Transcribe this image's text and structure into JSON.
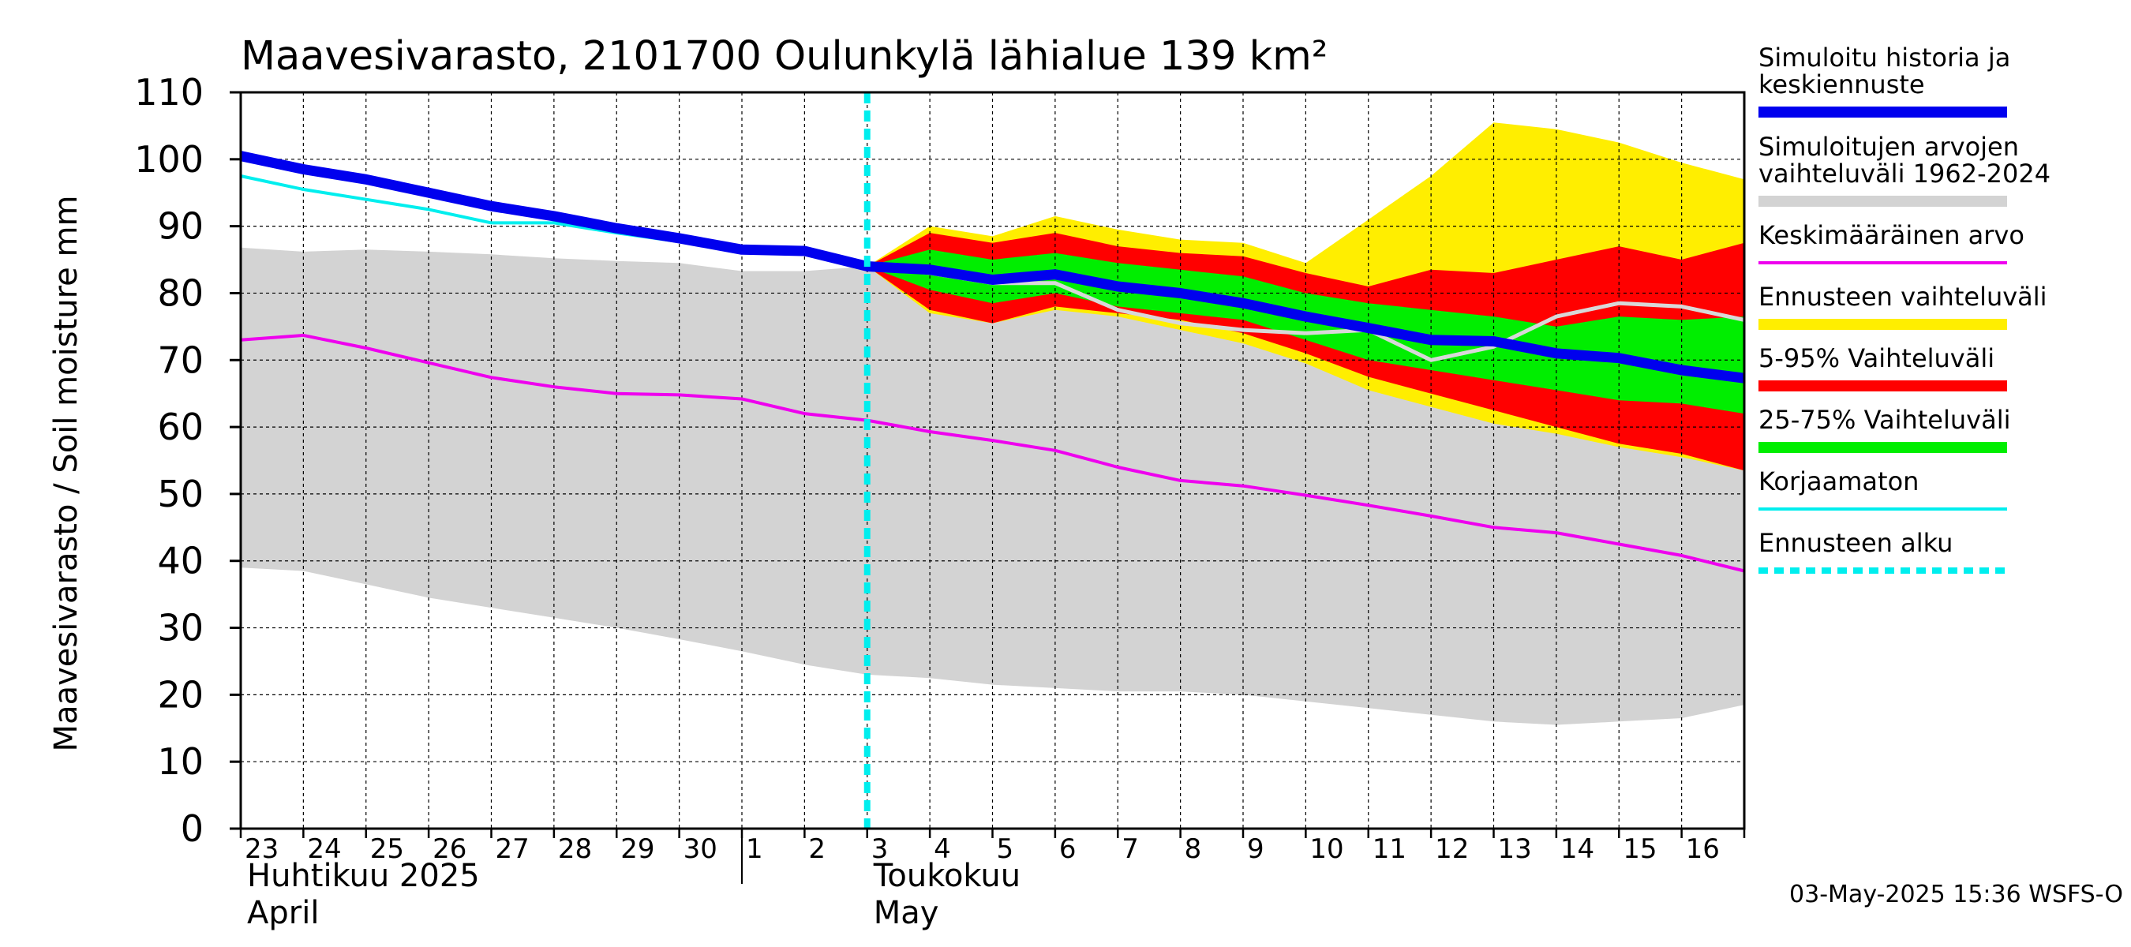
{
  "chart_data": {
    "type": "area",
    "title": "Maavesivarasto, 2101700 Oulunkylä lähialue 139 km²",
    "ylabel": "Maavesivarasto / Soil moisture   mm",
    "ylim": [
      0,
      110
    ],
    "yticks": [
      0,
      10,
      20,
      30,
      40,
      50,
      60,
      70,
      80,
      90,
      100,
      110
    ],
    "x_range": [
      "2025-04-23",
      "2025-05-17"
    ],
    "day_labels": [
      "23",
      "24",
      "25",
      "26",
      "27",
      "28",
      "29",
      "30",
      "1",
      "2",
      "3",
      "4",
      "5",
      "6",
      "7",
      "8",
      "9",
      "10",
      "11",
      "12",
      "13",
      "14",
      "15",
      "16"
    ],
    "months": [
      {
        "name": "Huhtikuu  2025",
        "name_en": "April",
        "start_date": "2025-04-23"
      },
      {
        "name": "Toukokuu",
        "name_en": "May",
        "start_date": "2025-05-03"
      }
    ],
    "month_separator_date": "2025-05-01",
    "forecast_start": "2025-05-03",
    "grid": true,
    "footer": "03-May-2025 15:36 WSFS-O",
    "legend_position": "right",
    "legend": [
      {
        "label": "Simuloitu historia ja keskiennuste",
        "color": "#0000ee",
        "style": "thick"
      },
      {
        "label": "Simuloitujen arvojen vaihteluväli 1962-2024",
        "color": "#d3d3d3",
        "style": "thick"
      },
      {
        "label": "Keskimääräinen arvo",
        "color": "#ee00ee",
        "style": "thin"
      },
      {
        "label": "Ennusteen vaihteluväli",
        "color": "#ffee00",
        "style": "thick"
      },
      {
        "label": "5-95% Vaihteluväli",
        "color": "#ff0000",
        "style": "thick"
      },
      {
        "label": "25-75% Vaihteluväli",
        "color": "#00ee00",
        "style": "thick"
      },
      {
        "label": "Korjaamaton",
        "color": "#00eeee",
        "style": "thin"
      },
      {
        "label": "Ennusteen alku",
        "color": "#00eeee",
        "style": "dashed"
      }
    ],
    "series": {
      "historical_range": {
        "x": [
          "2025-04-23",
          "2025-04-24",
          "2025-04-25",
          "2025-04-26",
          "2025-04-27",
          "2025-04-28",
          "2025-04-29",
          "2025-04-30",
          "2025-05-01",
          "2025-05-02",
          "2025-05-03",
          "2025-05-04",
          "2025-05-05",
          "2025-05-06",
          "2025-05-07",
          "2025-05-08",
          "2025-05-09",
          "2025-05-10",
          "2025-05-11",
          "2025-05-12",
          "2025-05-13",
          "2025-05-14",
          "2025-05-15",
          "2025-05-16",
          "2025-05-17"
        ],
        "upper": [
          86.8,
          86.2,
          86.5,
          86.2,
          85.8,
          85.2,
          84.8,
          84.5,
          83.3,
          83.3,
          84.0,
          82.0,
          81.0,
          81.5,
          79.0,
          76.5,
          74.5,
          73.5,
          72.5,
          72.0,
          71.0,
          70.5,
          70.5,
          70.5,
          71.0
        ],
        "lower": [
          39.0,
          38.5,
          36.5,
          34.5,
          33.0,
          31.5,
          30.0,
          28.3,
          26.5,
          24.5,
          23.0,
          22.5,
          21.5,
          21.0,
          20.5,
          20.5,
          20.0,
          19.0,
          18.0,
          17.0,
          16.0,
          15.5,
          16.0,
          16.5,
          18.5
        ]
      },
      "forecast_range": {
        "x": [
          "2025-05-03",
          "2025-05-04",
          "2025-05-05",
          "2025-05-06",
          "2025-05-07",
          "2025-05-08",
          "2025-05-09",
          "2025-05-10",
          "2025-05-11",
          "2025-05-12",
          "2025-05-13",
          "2025-05-14",
          "2025-05-15",
          "2025-05-16",
          "2025-05-17"
        ],
        "upper": [
          84.0,
          90.0,
          88.5,
          91.5,
          89.5,
          88.0,
          87.5,
          84.5,
          91.0,
          97.5,
          105.5,
          104.5,
          102.5,
          99.5,
          97.0
        ],
        "lower": [
          84.0,
          77.0,
          75.5,
          77.5,
          76.5,
          74.5,
          72.5,
          69.5,
          65.5,
          63.0,
          60.5,
          59.0,
          57.0,
          55.5,
          53.5
        ]
      },
      "p5_95": {
        "x": [
          "2025-05-03",
          "2025-05-04",
          "2025-05-05",
          "2025-05-06",
          "2025-05-07",
          "2025-05-08",
          "2025-05-09",
          "2025-05-10",
          "2025-05-11",
          "2025-05-12",
          "2025-05-13",
          "2025-05-14",
          "2025-05-15",
          "2025-05-16",
          "2025-05-17"
        ],
        "upper": [
          84.0,
          89.0,
          87.5,
          89.0,
          87.0,
          86.0,
          85.5,
          83.0,
          81.0,
          83.5,
          83.0,
          85.0,
          87.0,
          85.0,
          87.5
        ],
        "lower": [
          84.0,
          77.5,
          75.5,
          78.0,
          77.0,
          76.0,
          74.0,
          71.0,
          67.5,
          65.0,
          62.5,
          60.0,
          57.5,
          56.0,
          53.5
        ]
      },
      "p25_75": {
        "x": [
          "2025-05-03",
          "2025-05-04",
          "2025-05-05",
          "2025-05-06",
          "2025-05-07",
          "2025-05-08",
          "2025-05-09",
          "2025-05-10",
          "2025-05-11",
          "2025-05-12",
          "2025-05-13",
          "2025-05-14",
          "2025-05-15",
          "2025-05-16",
          "2025-05-17"
        ],
        "upper": [
          84.0,
          86.5,
          85.0,
          86.0,
          84.5,
          83.5,
          82.5,
          80.0,
          78.5,
          77.5,
          76.5,
          75.0,
          76.5,
          76.0,
          76.5
        ],
        "lower": [
          84.0,
          80.5,
          78.5,
          80.0,
          78.0,
          77.0,
          76.0,
          73.0,
          70.0,
          68.5,
          67.0,
          65.5,
          64.0,
          63.5,
          62.0
        ]
      },
      "simulated_mean": {
        "x": [
          "2025-04-23",
          "2025-04-24",
          "2025-04-25",
          "2025-04-26",
          "2025-04-27",
          "2025-04-28",
          "2025-04-29",
          "2025-04-30",
          "2025-05-01",
          "2025-05-02",
          "2025-05-03",
          "2025-05-04",
          "2025-05-05",
          "2025-05-06",
          "2025-05-07",
          "2025-05-08",
          "2025-05-09",
          "2025-05-10",
          "2025-05-11",
          "2025-05-12",
          "2025-05-13",
          "2025-05-14",
          "2025-05-15",
          "2025-05-16",
          "2025-05-17"
        ],
        "y": [
          100.5,
          98.5,
          97.0,
          95.0,
          93.0,
          91.5,
          89.7,
          88.2,
          86.5,
          86.3,
          84.0,
          83.5,
          82.0,
          82.8,
          81.0,
          80.0,
          78.5,
          76.5,
          74.8,
          73.0,
          72.8,
          71.0,
          70.3,
          68.5,
          67.3
        ]
      },
      "uncorrected": {
        "x": [
          "2025-04-23",
          "2025-04-24",
          "2025-04-25",
          "2025-04-26",
          "2025-04-27",
          "2025-04-28",
          "2025-04-29",
          "2025-04-30",
          "2025-05-01"
        ],
        "y": [
          97.5,
          95.5,
          94.0,
          92.5,
          90.5,
          90.5,
          89.0,
          87.7,
          86.5
        ]
      },
      "median_forecast": {
        "x": [
          "2025-05-03",
          "2025-05-04",
          "2025-05-05",
          "2025-05-06",
          "2025-05-07",
          "2025-05-08",
          "2025-05-09",
          "2025-05-10",
          "2025-05-11",
          "2025-05-12",
          "2025-05-13",
          "2025-05-14",
          "2025-05-15",
          "2025-05-16",
          "2025-05-17"
        ],
        "y": [
          84.0,
          83.0,
          81.5,
          81.5,
          77.5,
          75.5,
          74.5,
          74.0,
          74.5,
          70.0,
          72.0,
          76.5,
          78.5,
          78.0,
          76.0
        ]
      },
      "average": {
        "x": [
          "2025-04-23",
          "2025-04-24",
          "2025-04-25",
          "2025-04-26",
          "2025-04-27",
          "2025-04-28",
          "2025-04-29",
          "2025-04-30",
          "2025-05-01",
          "2025-05-02",
          "2025-05-03",
          "2025-05-04",
          "2025-05-05",
          "2025-05-06",
          "2025-05-07",
          "2025-05-08",
          "2025-05-09",
          "2025-05-10",
          "2025-05-11",
          "2025-05-12",
          "2025-05-13",
          "2025-05-14",
          "2025-05-15",
          "2025-05-16",
          "2025-05-17"
        ],
        "y": [
          73.0,
          73.7,
          71.8,
          69.6,
          67.4,
          66.0,
          65.0,
          64.8,
          64.2,
          62.0,
          61.0,
          59.3,
          58.0,
          56.5,
          54.0,
          52.0,
          51.2,
          49.8,
          48.3,
          46.7,
          45.0,
          44.2,
          42.5,
          40.8,
          38.5
        ]
      }
    }
  }
}
